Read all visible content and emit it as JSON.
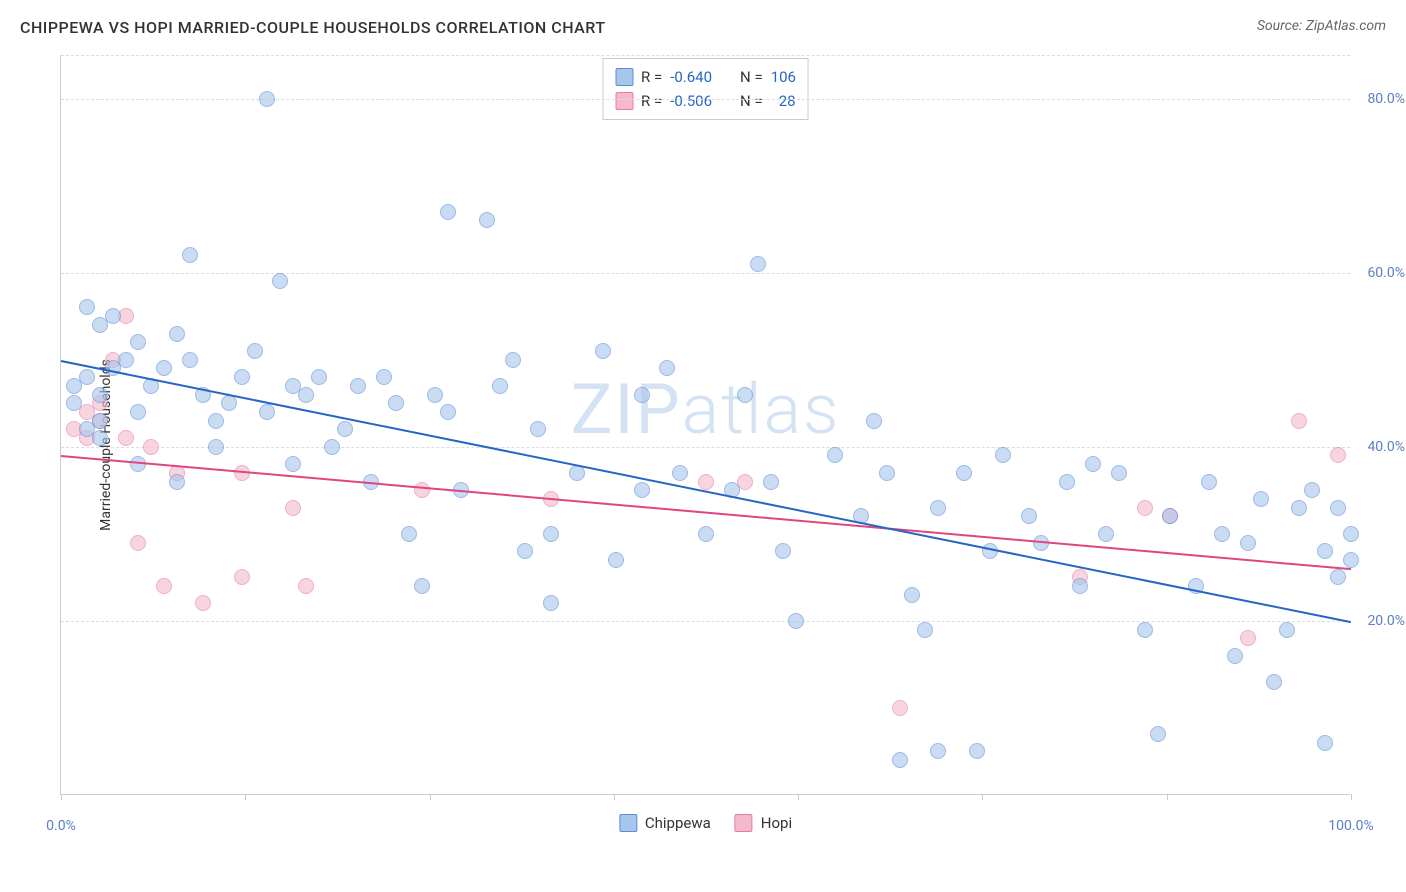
{
  "title": "CHIPPEWA VS HOPI MARRIED-COUPLE HOUSEHOLDS CORRELATION CHART",
  "source": "Source: ZipAtlas.com",
  "y_label": "Married-couple Households",
  "watermark_a": "ZIP",
  "watermark_b": "atlas",
  "chart": {
    "type": "scatter",
    "xlim": [
      0,
      100
    ],
    "ylim": [
      0,
      85
    ],
    "y_ticks": [
      20,
      40,
      60,
      80
    ],
    "y_tick_labels": [
      "20.0%",
      "40.0%",
      "60.0%",
      "80.0%"
    ],
    "x_tick_marks": [
      0,
      14.3,
      28.6,
      42.9,
      57.1,
      71.4,
      85.7,
      100
    ],
    "x_start_label": "0.0%",
    "x_end_label": "100.0%",
    "grid_y": [
      20,
      40,
      60,
      80,
      85
    ],
    "series_a": {
      "name": "Chippewa",
      "marker_fill": "#a8c5ec",
      "marker_stroke": "#5b8dd6",
      "trend_color": "#2665c4",
      "R": "-0.640",
      "N": "106",
      "trend": {
        "x1": 0,
        "y1": 50,
        "x2": 100,
        "y2": 20
      },
      "points": [
        [
          1,
          47
        ],
        [
          1,
          45
        ],
        [
          2,
          56
        ],
        [
          2,
          42
        ],
        [
          2,
          48
        ],
        [
          3,
          54
        ],
        [
          3,
          46
        ],
        [
          3,
          43
        ],
        [
          4,
          49
        ],
        [
          4,
          55
        ],
        [
          5,
          50
        ],
        [
          6,
          52
        ],
        [
          6,
          44
        ],
        [
          7,
          47
        ],
        [
          8,
          49
        ],
        [
          9,
          53
        ],
        [
          10,
          50
        ],
        [
          10,
          62
        ],
        [
          11,
          46
        ],
        [
          12,
          40
        ],
        [
          13,
          45
        ],
        [
          14,
          48
        ],
        [
          15,
          51
        ],
        [
          16,
          44
        ],
        [
          16,
          80
        ],
        [
          17,
          59
        ],
        [
          18,
          47
        ],
        [
          18,
          38
        ],
        [
          19,
          46
        ],
        [
          20,
          48
        ],
        [
          22,
          42
        ],
        [
          23,
          47
        ],
        [
          24,
          36
        ],
        [
          25,
          48
        ],
        [
          26,
          45
        ],
        [
          27,
          30
        ],
        [
          28,
          24
        ],
        [
          29,
          46
        ],
        [
          30,
          67
        ],
        [
          30,
          44
        ],
        [
          31,
          35
        ],
        [
          33,
          66
        ],
        [
          34,
          47
        ],
        [
          35,
          50
        ],
        [
          36,
          28
        ],
        [
          37,
          42
        ],
        [
          38,
          30
        ],
        [
          40,
          37
        ],
        [
          42,
          51
        ],
        [
          43,
          27
        ],
        [
          45,
          35
        ],
        [
          45,
          46
        ],
        [
          47,
          49
        ],
        [
          48,
          37
        ],
        [
          50,
          30
        ],
        [
          52,
          35
        ],
        [
          53,
          46
        ],
        [
          54,
          61
        ],
        [
          55,
          36
        ],
        [
          56,
          28
        ],
        [
          57,
          20
        ],
        [
          60,
          39
        ],
        [
          62,
          32
        ],
        [
          63,
          43
        ],
        [
          64,
          37
        ],
        [
          65,
          4
        ],
        [
          66,
          23
        ],
        [
          67,
          19
        ],
        [
          68,
          5
        ],
        [
          68,
          33
        ],
        [
          70,
          37
        ],
        [
          71,
          5
        ],
        [
          72,
          28
        ],
        [
          73,
          39
        ],
        [
          75,
          32
        ],
        [
          76,
          29
        ],
        [
          78,
          36
        ],
        [
          79,
          24
        ],
        [
          80,
          38
        ],
        [
          81,
          30
        ],
        [
          82,
          37
        ],
        [
          84,
          19
        ],
        [
          85,
          7
        ],
        [
          86,
          32
        ],
        [
          88,
          24
        ],
        [
          89,
          36
        ],
        [
          90,
          30
        ],
        [
          91,
          16
        ],
        [
          92,
          29
        ],
        [
          93,
          34
        ],
        [
          94,
          13
        ],
        [
          95,
          19
        ],
        [
          96,
          33
        ],
        [
          97,
          35
        ],
        [
          98,
          28
        ],
        [
          98,
          6
        ],
        [
          99,
          25
        ],
        [
          99,
          33
        ],
        [
          100,
          27
        ],
        [
          100,
          30
        ],
        [
          3,
          41
        ],
        [
          6,
          38
        ],
        [
          9,
          36
        ],
        [
          12,
          43
        ],
        [
          21,
          40
        ],
        [
          38,
          22
        ]
      ]
    },
    "series_b": {
      "name": "Hopi",
      "marker_fill": "#f5b8cc",
      "marker_stroke": "#e37da0",
      "trend_color": "#e0457e",
      "R": "-0.506",
      "N": "28",
      "trend": {
        "x1": 0,
        "y1": 39,
        "x2": 100,
        "y2": 26
      },
      "points": [
        [
          1,
          42
        ],
        [
          2,
          44
        ],
        [
          2,
          41
        ],
        [
          3,
          45
        ],
        [
          3,
          43
        ],
        [
          4,
          50
        ],
        [
          5,
          55
        ],
        [
          5,
          41
        ],
        [
          6,
          29
        ],
        [
          7,
          40
        ],
        [
          8,
          24
        ],
        [
          9,
          37
        ],
        [
          11,
          22
        ],
        [
          14,
          25
        ],
        [
          14,
          37
        ],
        [
          18,
          33
        ],
        [
          19,
          24
        ],
        [
          28,
          35
        ],
        [
          38,
          34
        ],
        [
          50,
          36
        ],
        [
          53,
          36
        ],
        [
          65,
          10
        ],
        [
          79,
          25
        ],
        [
          84,
          33
        ],
        [
          86,
          32
        ],
        [
          92,
          18
        ],
        [
          96,
          43
        ],
        [
          99,
          39
        ]
      ]
    }
  },
  "legend": {
    "R_label": "R =",
    "N_label": "N ="
  }
}
